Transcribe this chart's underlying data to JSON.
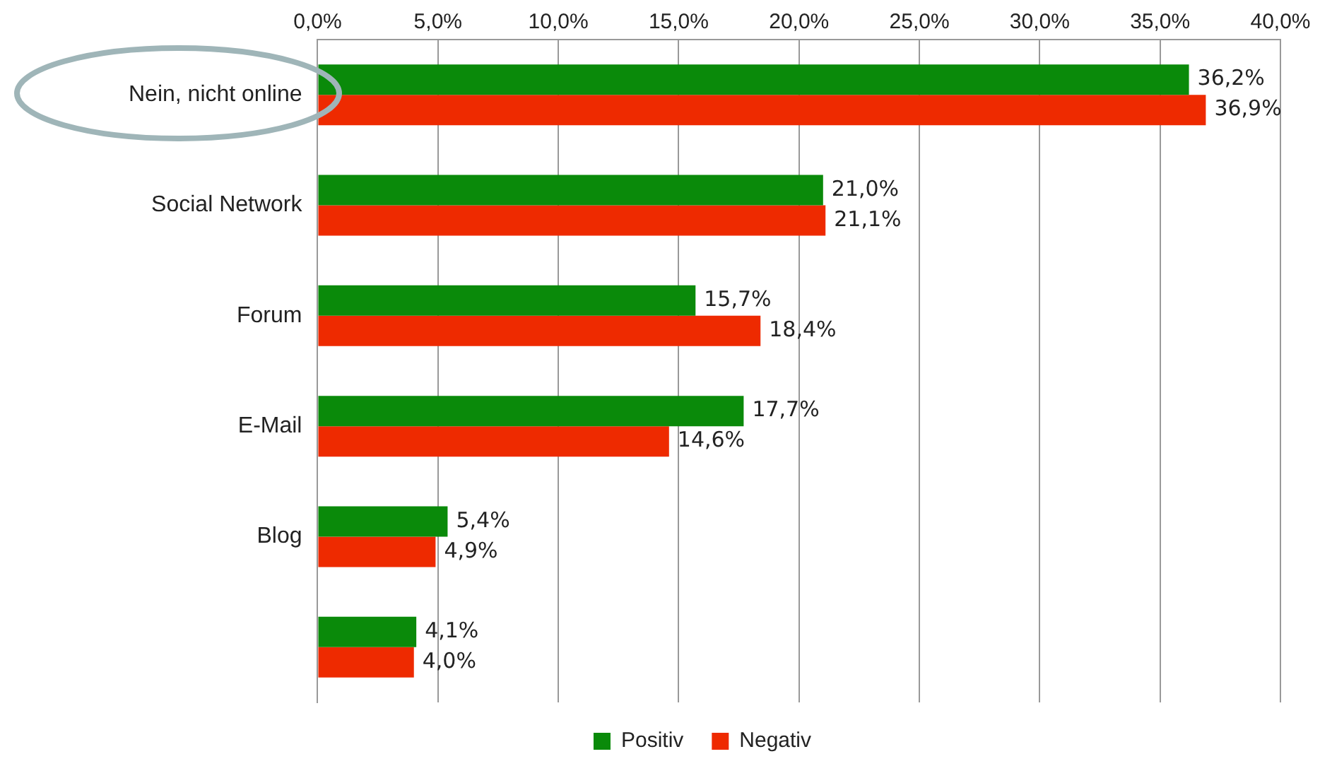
{
  "chart_data": {
    "type": "bar",
    "orientation": "horizontal",
    "categories": [
      "Nein, nicht online",
      "Social Network",
      "Forum",
      "E-Mail",
      "Blog",
      null
    ],
    "series": [
      {
        "name": "Positiv",
        "color": "#0a8a0a",
        "values": [
          36.2,
          21.0,
          15.7,
          17.7,
          5.4,
          4.1
        ],
        "value_labels": [
          "36,2%",
          "21,0%",
          "15,7%",
          "17,7%",
          "5,4%",
          "4,1%"
        ]
      },
      {
        "name": "Negativ",
        "color": "#ee2a00",
        "values": [
          36.9,
          21.1,
          18.4,
          14.6,
          4.9,
          4.0
        ],
        "value_labels": [
          "36,9%",
          "21,1%",
          "18,4%",
          "14,6%",
          "4,9%",
          "4,0%"
        ]
      }
    ],
    "xlim": [
      0,
      40
    ],
    "xticks": [
      {
        "value": 0,
        "label": "0,0%"
      },
      {
        "value": 5,
        "label": "5,0%"
      },
      {
        "value": 10,
        "label": "10,0%"
      },
      {
        "value": 15,
        "label": "15,0%"
      },
      {
        "value": 20,
        "label": "20,0%"
      },
      {
        "value": 25,
        "label": "25,0%"
      },
      {
        "value": 30,
        "label": "30,0%"
      },
      {
        "value": 35,
        "label": "35,0%"
      },
      {
        "value": 40,
        "label": "40,0%"
      }
    ],
    "grid": "x",
    "legend": "bottom"
  }
}
